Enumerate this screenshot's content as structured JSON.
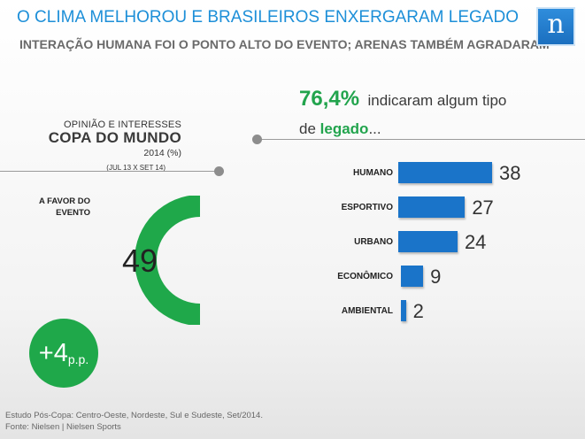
{
  "header": {
    "title": "O CLIMA MELHOROU E BRASILEIROS ENXERGARAM LEGADO",
    "subtitle": "INTERAÇÃO HUMANA FOI O PONTO ALTO DO EVENTO; ARENAS TAMBÉM AGRADARAM",
    "logo_letter": "n"
  },
  "left_panel": {
    "line1": "OPINIÃO E INTERESSES",
    "line2": "COPA DO MUNDO",
    "line3": "2014 (%)",
    "line4": "(JUL 13 X SET 14)",
    "favor_label_1": "A FAVOR DO",
    "favor_label_2": "EVENTO",
    "badge_main": "+4",
    "badge_unit": "p.p."
  },
  "headline": {
    "pct": "76,4%",
    "text_1": "indicaram algum tipo",
    "text_2_pre": "de",
    "text_2_highlight": "legado",
    "text_2_post": "..."
  },
  "footer": {
    "line1": "Estudo Pós-Copa: Centro-Oeste, Nordeste, Sul e Sudeste, Set/2014.",
    "line2": "Fonte: Nielsen |  Nielsen Sports"
  },
  "colors": {
    "title_blue": "#1d8fd8",
    "green": "#1fa84a",
    "bar_blue": "#1a74c9",
    "donut_track": "#ffffff"
  },
  "chart_data": [
    {
      "type": "bar",
      "orientation": "horizontal",
      "categories": [
        "HUMANO",
        "ESPORTIVO",
        "URBANO",
        "ECONÔMICO",
        "AMBIENTAL"
      ],
      "values": [
        38,
        27,
        24,
        9,
        2
      ],
      "data_labels": [
        "38",
        "27",
        "24",
        "9",
        "2"
      ],
      "title": "",
      "xlabel": "",
      "ylabel": "",
      "xlim": [
        0,
        38
      ],
      "grid": false
    },
    {
      "type": "pie",
      "variant": "half-donut",
      "categories": [
        "A FAVOR DO EVENTO"
      ],
      "values": [
        49
      ],
      "data_labels": [
        "49"
      ]
    }
  ]
}
